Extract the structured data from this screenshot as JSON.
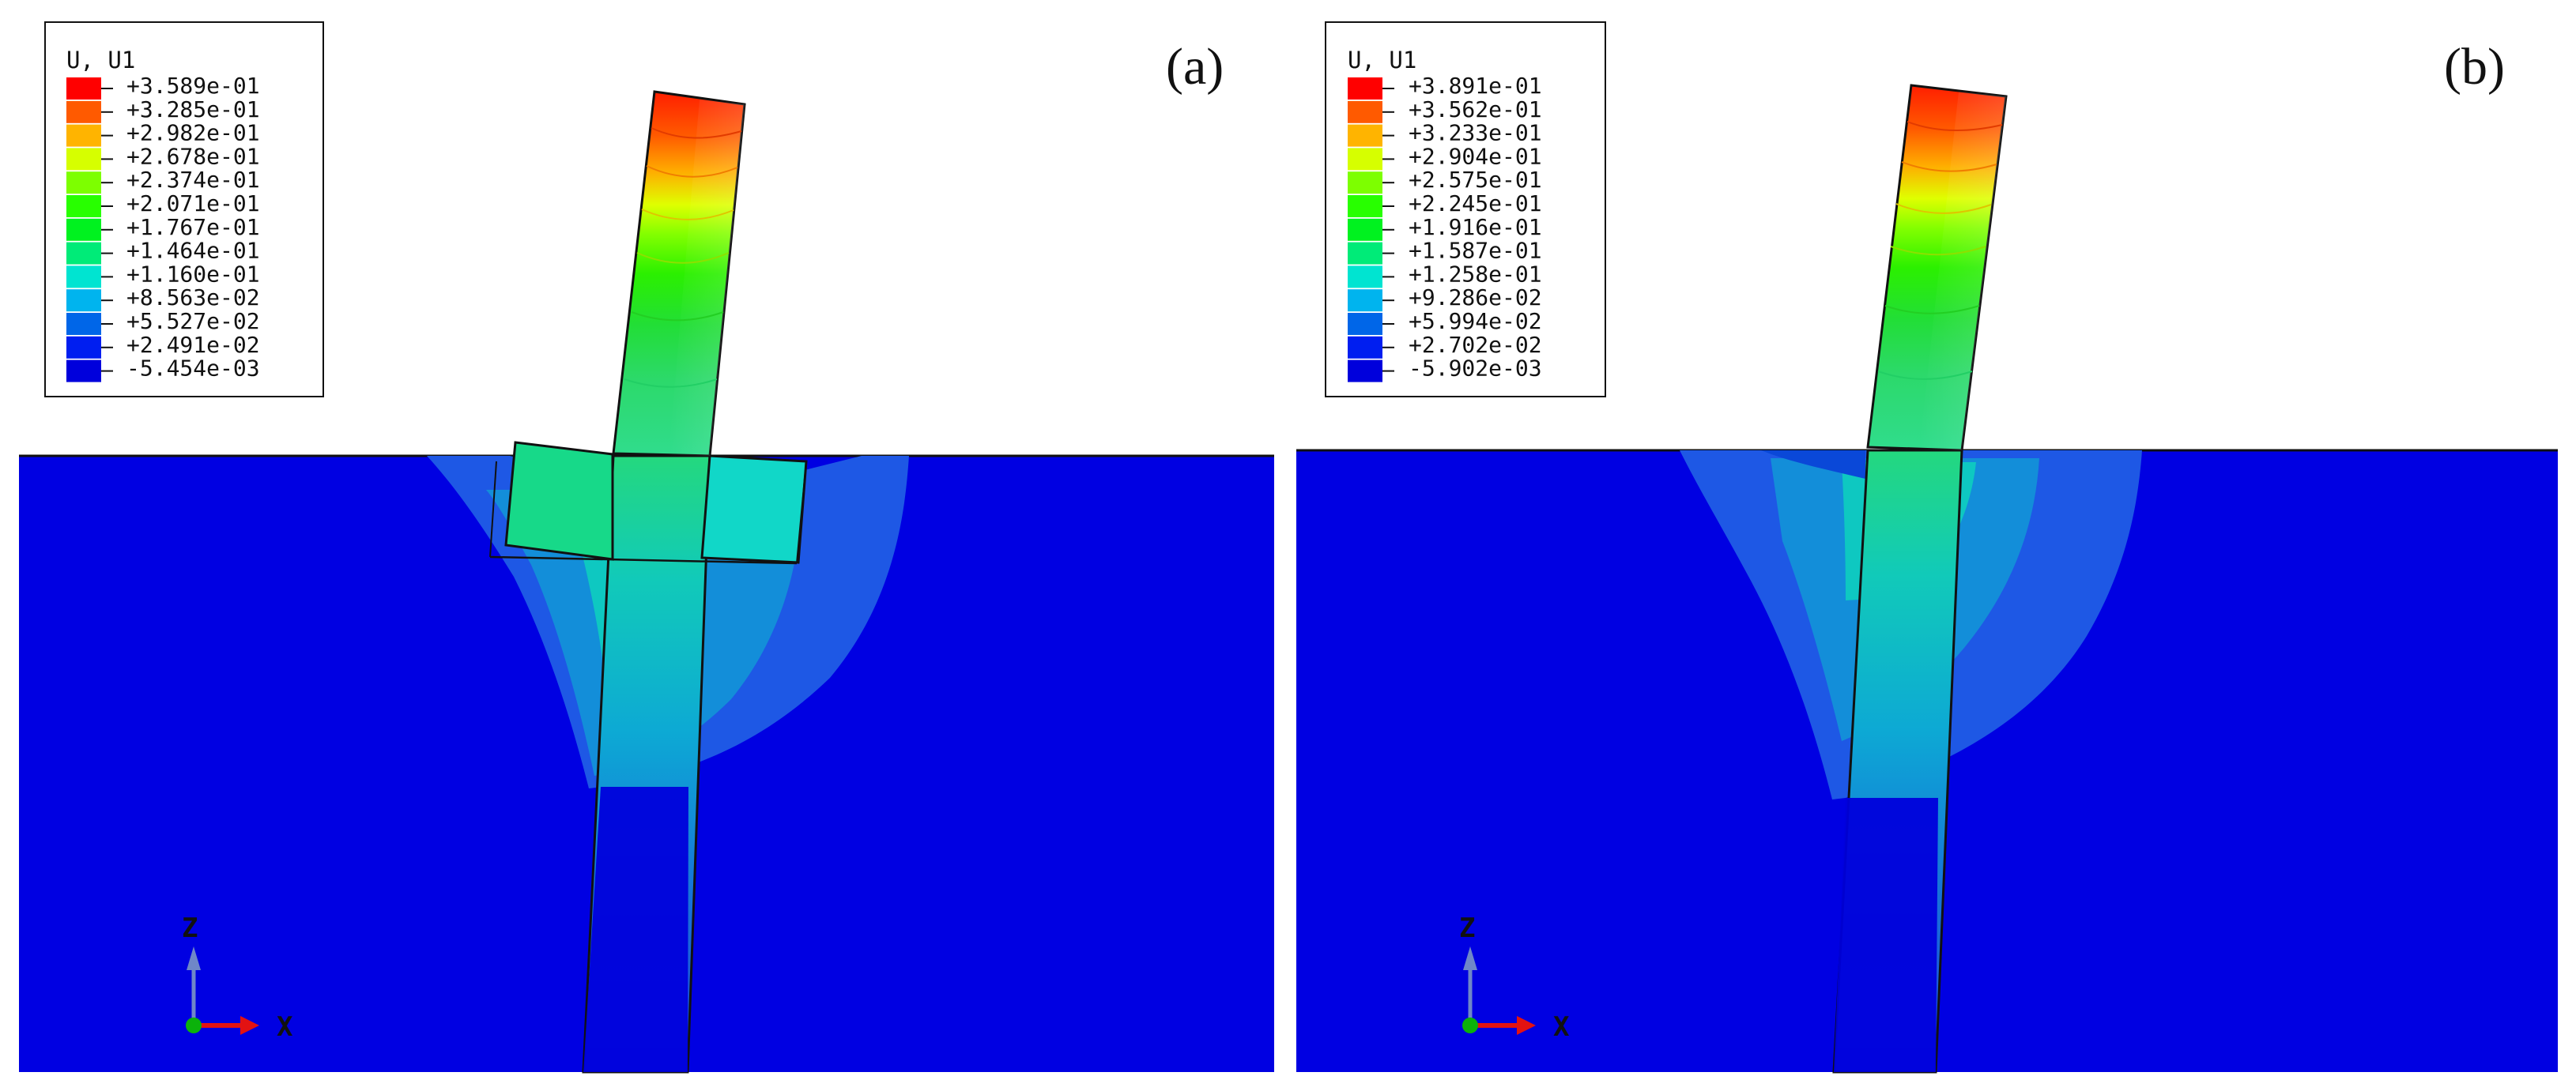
{
  "panels": [
    {
      "id": "a",
      "label": "(a)",
      "legend": {
        "title": "U, U1",
        "values": [
          "+3.589e-01",
          "+3.285e-01",
          "+2.982e-01",
          "+2.678e-01",
          "+2.374e-01",
          "+2.071e-01",
          "+1.767e-01",
          "+1.464e-01",
          "+1.160e-01",
          "+8.563e-02",
          "+5.527e-02",
          "+2.491e-02",
          "-5.454e-03"
        ]
      },
      "axes": {
        "vertical": "Z",
        "horizontal": "X"
      }
    },
    {
      "id": "b",
      "label": "(b)",
      "legend": {
        "title": "U, U1",
        "values": [
          "+3.891e-01",
          "+3.562e-01",
          "+3.233e-01",
          "+2.904e-01",
          "+2.575e-01",
          "+2.245e-01",
          "+1.916e-01",
          "+1.587e-01",
          "+1.258e-01",
          "+9.286e-02",
          "+5.994e-02",
          "+2.702e-02",
          "-5.902e-03"
        ]
      },
      "axes": {
        "vertical": "Z",
        "horizontal": "X"
      }
    }
  ],
  "colors": {
    "contour_scale": [
      "#ff0000",
      "#ff5a00",
      "#ffb400",
      "#d6ff00",
      "#7dff00",
      "#28ff00",
      "#00f21f",
      "#00eb78",
      "#00e4d1",
      "#00b4ee",
      "#0066e8",
      "#001ef0",
      "#0000dc"
    ],
    "soil": "#0000e2",
    "axis_x": "#e31212",
    "axis_z": "#6f87c8",
    "axis_y": "#0bb20b"
  }
}
